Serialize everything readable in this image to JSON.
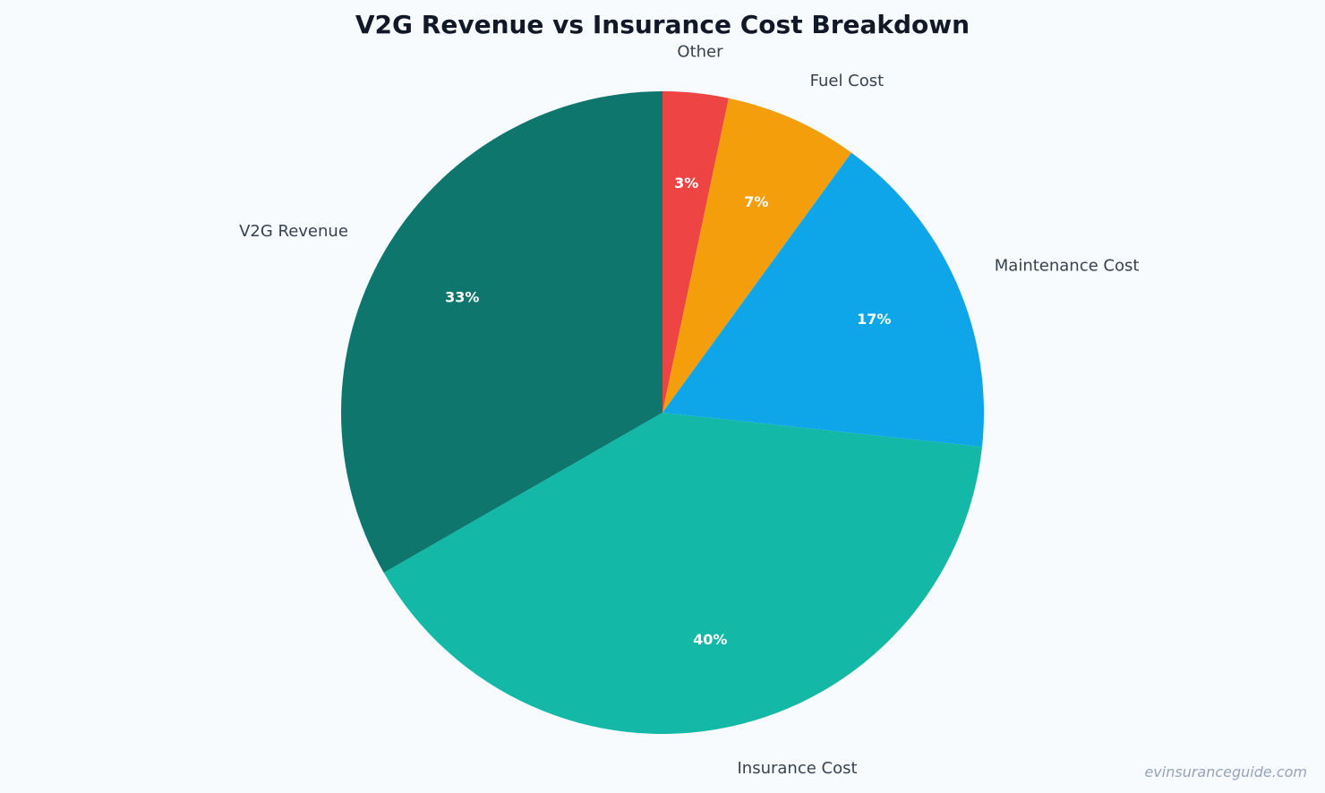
{
  "chart_data": {
    "type": "pie",
    "title": "V2G Revenue vs Insurance Cost Breakdown",
    "start_angle_deg": 0,
    "direction": "clockwise",
    "slices": [
      {
        "label": "Other",
        "value": 3.3,
        "pct_label": "3%",
        "color": "#ef4444"
      },
      {
        "label": "Fuel Cost",
        "value": 6.7,
        "pct_label": "7%",
        "color": "#f59e0b"
      },
      {
        "label": "Maintenance Cost",
        "value": 16.7,
        "pct_label": "17%",
        "color": "#0ea5e9"
      },
      {
        "label": "Insurance Cost",
        "value": 40.0,
        "pct_label": "40%",
        "color": "#14b8a6"
      },
      {
        "label": "V2G Revenue",
        "value": 33.3,
        "pct_label": "33%",
        "color": "#0f766e"
      }
    ]
  },
  "watermark": "evinsuranceguide.com"
}
